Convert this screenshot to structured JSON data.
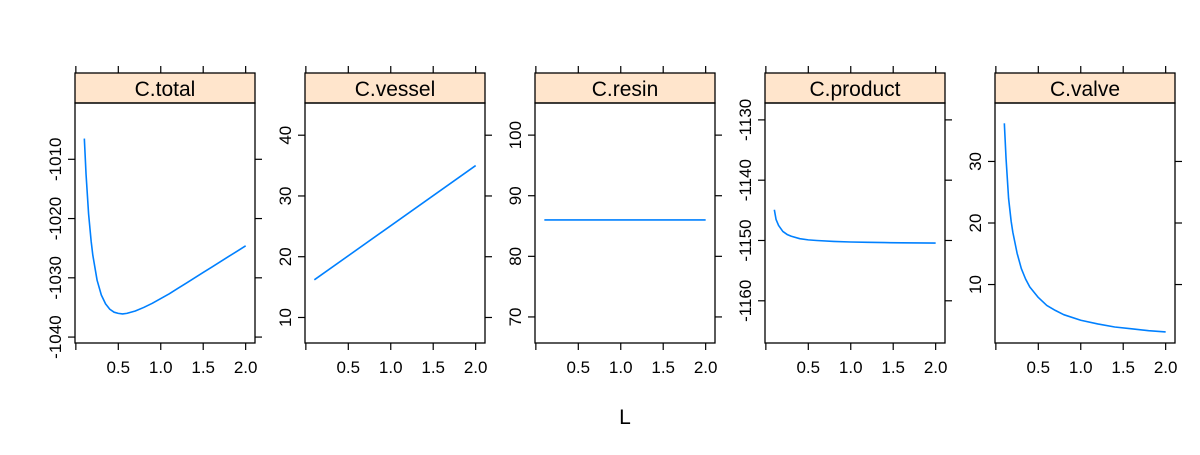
{
  "chart_data": {
    "type": "line",
    "xlabel": "L",
    "style": {
      "line_color": "#0080ff",
      "strip_fill": "#ffe5cc",
      "frame_color": "#000000",
      "background": "#ffffff"
    },
    "panels": [
      {
        "title": "C.total",
        "xlim": [
          -0.01,
          2.11
        ],
        "xticks": [
          0.5,
          1.0,
          1.5,
          2.0
        ],
        "xtick_labels": [
          "0.5",
          "1.0",
          "1.5",
          "2.0"
        ],
        "ylim": [
          -1041,
          -1000.5
        ],
        "yticks": [
          -1040,
          -1030,
          -1020,
          -1010
        ],
        "ytick_labels": [
          "-1040",
          "-1030",
          "-1020",
          "-1010"
        ],
        "series": [
          {
            "x": [
              0.1,
              0.12,
              0.15,
              0.18,
              0.2,
              0.25,
              0.3,
              0.35,
              0.4,
              0.45,
              0.5,
              0.55,
              0.6,
              0.7,
              0.8,
              0.9,
              1.0,
              1.1,
              1.2,
              1.3,
              1.4,
              1.5,
              1.6,
              1.7,
              1.8,
              1.9,
              2.0
            ],
            "y": [
              -1006.5,
              -1012.5,
              -1019.2,
              -1023.8,
              -1026.2,
              -1030.4,
              -1032.9,
              -1034.4,
              -1035.3,
              -1035.8,
              -1036.0,
              -1036.1,
              -1036.0,
              -1035.6,
              -1035.0,
              -1034.3,
              -1033.5,
              -1032.7,
              -1031.8,
              -1030.9,
              -1030.0,
              -1029.1,
              -1028.2,
              -1027.3,
              -1026.4,
              -1025.5,
              -1024.6
            ]
          }
        ]
      },
      {
        "title": "C.vessel",
        "xlim": [
          -0.01,
          2.11
        ],
        "xticks": [
          0.5,
          1.0,
          1.5,
          2.0
        ],
        "xtick_labels": [
          "0.5",
          "1.0",
          "1.5",
          "2.0"
        ],
        "ylim": [
          5.8,
          45.3
        ],
        "yticks": [
          10,
          20,
          30,
          40
        ],
        "ytick_labels": [
          "10",
          "20",
          "30",
          "40"
        ],
        "series": [
          {
            "x": [
              0.1,
              2.0
            ],
            "y": [
              16.2,
              35.0
            ]
          }
        ]
      },
      {
        "title": "C.resin",
        "xlim": [
          -0.01,
          2.11
        ],
        "xticks": [
          0.5,
          1.0,
          1.5,
          2.0
        ],
        "xtick_labels": [
          "0.5",
          "1.0",
          "1.5",
          "2.0"
        ],
        "ylim": [
          65.7,
          105.3
        ],
        "yticks": [
          70,
          80,
          90,
          100
        ],
        "ytick_labels": [
          "70",
          "80",
          "90",
          "100"
        ],
        "series": [
          {
            "x": [
              0.1,
              2.0
            ],
            "y": [
              86.0,
              86.0
            ]
          }
        ]
      },
      {
        "title": "C.product",
        "xlim": [
          -0.01,
          2.11
        ],
        "xticks": [
          0.5,
          1.0,
          1.5,
          2.0
        ],
        "xtick_labels": [
          "0.5",
          "1.0",
          "1.5",
          "2.0"
        ],
        "ylim": [
          -1167,
          -1127.2
        ],
        "yticks": [
          -1160,
          -1150,
          -1140,
          -1130
        ],
        "ytick_labels": [
          "-1160",
          "-1150",
          "-1140",
          "-1130"
        ],
        "series": [
          {
            "x": [
              0.1,
              0.12,
              0.15,
              0.2,
              0.25,
              0.3,
              0.4,
              0.5,
              0.6,
              0.8,
              1.0,
              1.2,
              1.4,
              1.6,
              1.8,
              2.0
            ],
            "y": [
              -1144.9,
              -1146.5,
              -1147.5,
              -1148.5,
              -1149.0,
              -1149.3,
              -1149.7,
              -1149.9,
              -1150.0,
              -1150.15,
              -1150.25,
              -1150.3,
              -1150.35,
              -1150.38,
              -1150.4,
              -1150.42
            ]
          }
        ]
      },
      {
        "title": "C.valve",
        "xlim": [
          -0.01,
          2.11
        ],
        "xticks": [
          0.5,
          1.0,
          1.5,
          2.0
        ],
        "xtick_labels": [
          "0.5",
          "1.0",
          "1.5",
          "2.0"
        ],
        "ylim": [
          0.5,
          39.5
        ],
        "yticks": [
          10,
          20,
          30
        ],
        "ytick_labels": [
          "10",
          "20",
          "30"
        ],
        "series": [
          {
            "x": [
              0.1,
              0.12,
              0.15,
              0.18,
              0.2,
              0.25,
              0.3,
              0.35,
              0.4,
              0.5,
              0.6,
              0.7,
              0.8,
              1.0,
              1.2,
              1.4,
              1.6,
              1.8,
              2.0
            ],
            "y": [
              36.2,
              30.5,
              24.0,
              20.3,
              18.5,
              15.1,
              12.6,
              10.9,
              9.6,
              7.9,
              6.6,
              5.8,
              5.1,
              4.2,
              3.6,
              3.1,
              2.8,
              2.5,
              2.3
            ]
          }
        ]
      }
    ]
  }
}
